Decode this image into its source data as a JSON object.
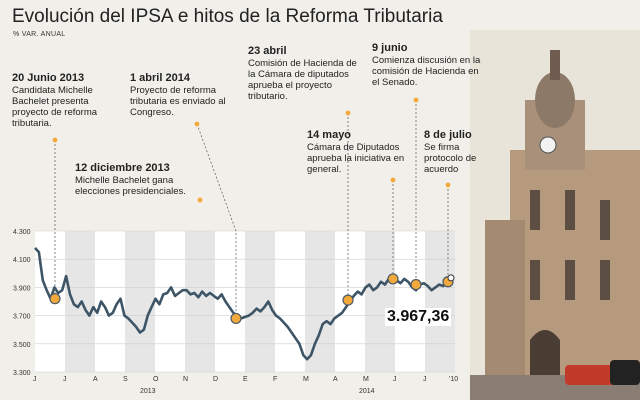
{
  "title": "Evolución del IPSA e hitos de la Reforma Tributaria",
  "subtitle": "% VAR. ANUAL",
  "annotations": [
    {
      "date": "20 Junio 2013",
      "text": "Candidata Michelle Bachelet presenta proyecto de reforma tributaria."
    },
    {
      "date": "12 diciembre 2013",
      "text": "Michelle Bachelet gana elecciones presidenciales."
    },
    {
      "date": "1 abril 2014",
      "text": "Proyecto de reforma tributaria es enviado al Congreso."
    },
    {
      "date": "23 abril",
      "text": "Comisión de Hacienda de la Cámara de diputados aprueba el proyecto tributario."
    },
    {
      "date": "14 mayo",
      "text": "Cámara de Diputados aprueba la iniciativa en general."
    },
    {
      "date": "9 junio",
      "text": "Comienza discusión en la comisión de Hacienda en el Senado."
    },
    {
      "date": "8 de julio",
      "text": "Se firma protocolo de acuerdo"
    }
  ],
  "last_value": "3.967,36",
  "colors": {
    "line": "#3d5566",
    "marker": "#f2a93b",
    "band": "#ffffff",
    "bandAlt": "#e6e6e6"
  },
  "chart_data": {
    "type": "line",
    "title": "Evolución del IPSA e hitos de la Reforma Tributaria",
    "ylim": [
      3300,
      4300
    ],
    "yticks": [
      "4.300",
      "4.100",
      "3.900",
      "3.700",
      "3.500",
      "3.300"
    ],
    "month_labels": [
      "J",
      "J",
      "A",
      "S",
      "O",
      "N",
      "D",
      "E",
      "F",
      "M",
      "A",
      "M",
      "J",
      "J"
    ],
    "last_tick": "10",
    "year_labels": [
      "2013",
      "2014"
    ],
    "series": [
      {
        "values": [
          4180,
          4150,
          3950,
          3880,
          3820,
          3900,
          3860,
          3880,
          3980,
          3850,
          3780,
          3760,
          3800,
          3740,
          3700,
          3760,
          3720,
          3800,
          3760,
          3700,
          3720,
          3780,
          3820,
          3700,
          3680,
          3650,
          3620,
          3580,
          3600,
          3700,
          3760,
          3820,
          3780,
          3850,
          3860,
          3900,
          3840,
          3860,
          3880,
          3880,
          3850,
          3860,
          3830,
          3870,
          3840,
          3860,
          3840,
          3820,
          3850,
          3800,
          3760,
          3720,
          3700,
          3680,
          3690,
          3700,
          3720,
          3750,
          3730,
          3760,
          3800,
          3740,
          3700,
          3680,
          3650,
          3620,
          3580,
          3540,
          3500,
          3420,
          3390,
          3420,
          3500,
          3560,
          3640,
          3660,
          3640,
          3680,
          3700,
          3720,
          3760,
          3800,
          3840,
          3870,
          3850,
          3900,
          3920,
          3880,
          3900,
          3940,
          3920,
          3960,
          3980,
          3950,
          3930,
          3960,
          3940,
          3900,
          3880,
          3920,
          3930,
          3910,
          3880,
          3900,
          3920,
          3910,
          3940,
          3967.36
        ]
      }
    ],
    "markers": [
      3820,
      3680,
      3810,
      3960,
      3920,
      3930,
      3940
    ]
  }
}
